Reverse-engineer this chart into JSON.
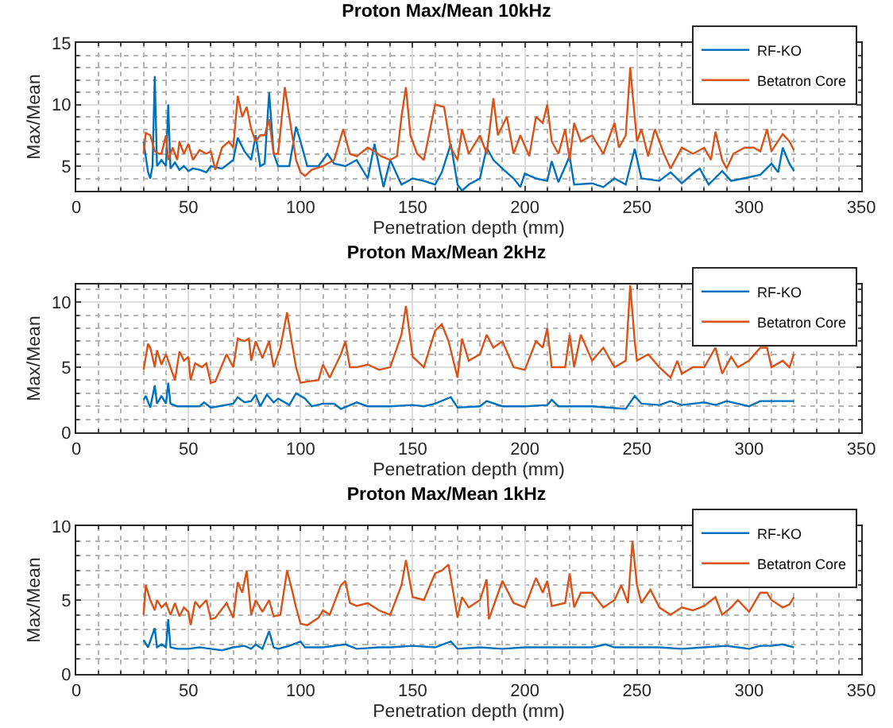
{
  "chart_data": [
    {
      "type": "line",
      "title": "Proton Max/Mean 10kHz",
      "xlabel": "Penetration depth (mm)",
      "ylabel": "Max/Mean",
      "xlim": [
        0,
        350
      ],
      "xticks": [
        0,
        50,
        100,
        150,
        200,
        250,
        300,
        350
      ],
      "ylim": [
        3,
        15
      ],
      "yticks": [
        5,
        10,
        15
      ],
      "grid": true,
      "legend": "top right",
      "marker": "none",
      "line_style": "solid",
      "series": [
        {
          "name": "RF-KO",
          "color": "#0072bd",
          "x": [
            30,
            32,
            33,
            34,
            35,
            36,
            38,
            40,
            41,
            42,
            44,
            46,
            48,
            50,
            52,
            55,
            58,
            60,
            65,
            70,
            72,
            75,
            78,
            80,
            82,
            84,
            86,
            88,
            90,
            95,
            98,
            100,
            103,
            108,
            112,
            115,
            120,
            125,
            130,
            133,
            135,
            137,
            140,
            145,
            150,
            155,
            160,
            163,
            167,
            170,
            172,
            175,
            180,
            183,
            186,
            190,
            195,
            198,
            200,
            205,
            210,
            212,
            215,
            220,
            222,
            230,
            235,
            240,
            245,
            249,
            252,
            260,
            265,
            270,
            275,
            278,
            282,
            288,
            292,
            300,
            305,
            310,
            313,
            315,
            318,
            320
          ],
          "values": [
            7,
            4.5,
            4,
            5,
            12.3,
            5,
            5.5,
            5,
            10,
            4.8,
            5.3,
            4.7,
            5,
            4.6,
            4.8,
            4.7,
            4.5,
            5,
            4.8,
            5.5,
            7.3,
            6.2,
            5.5,
            7.5,
            5,
            5.2,
            11,
            6,
            5,
            5,
            8.2,
            7,
            5,
            5,
            6,
            5.2,
            5,
            5.5,
            4,
            6.8,
            5,
            3.3,
            5.5,
            3.5,
            4,
            3.8,
            3.5,
            4.5,
            6.8,
            3.5,
            3,
            3.5,
            4,
            6.5,
            5.5,
            4.8,
            4,
            3.3,
            4.4,
            4,
            3.8,
            5.4,
            3.7,
            5.8,
            3.5,
            3.6,
            3.3,
            4,
            3.5,
            6.4,
            4,
            3.8,
            4.5,
            3.6,
            4.4,
            4.8,
            3.5,
            4.6,
            3.8,
            4.1,
            4.3,
            5.2,
            4.5,
            6.5,
            5.2,
            4.6
          ]
        },
        {
          "name": "Betatron Core",
          "color": "#d95319",
          "x": [
            30,
            31,
            33,
            35,
            37,
            38,
            40,
            41,
            43,
            45,
            46,
            48,
            50,
            52,
            55,
            58,
            60,
            62,
            65,
            68,
            70,
            72,
            74,
            76,
            78,
            80,
            82,
            84,
            86,
            88,
            90,
            93,
            95,
            98,
            100,
            102,
            105,
            110,
            115,
            119,
            122,
            125,
            130,
            133,
            136,
            140,
            143,
            145,
            147,
            149,
            152,
            155,
            160,
            164,
            167,
            170,
            172,
            175,
            180,
            183,
            186,
            188,
            192,
            195,
            198,
            202,
            205,
            208,
            210,
            212,
            215,
            218,
            220,
            222,
            225,
            230,
            235,
            240,
            242,
            245,
            247,
            249,
            250,
            252,
            255,
            258,
            262,
            265,
            270,
            275,
            280,
            283,
            285,
            288,
            290,
            293,
            298,
            302,
            305,
            308,
            310,
            315,
            318,
            320
          ],
          "values": [
            6,
            7.7,
            7.5,
            6.2,
            6,
            6,
            7.5,
            5.5,
            6.5,
            5.5,
            7,
            6,
            6.8,
            5.5,
            6.3,
            6,
            6.2,
            4.7,
            6.5,
            7,
            6.5,
            10.7,
            9,
            9.8,
            8,
            7,
            7.5,
            7.5,
            8.8,
            6,
            6,
            11.4,
            9,
            5.5,
            4.5,
            4.2,
            4.7,
            5,
            5.5,
            8,
            6,
            5.8,
            6.5,
            6.2,
            5.8,
            5.5,
            5.8,
            9,
            11.4,
            7.5,
            6,
            5.5,
            10,
            9.8,
            6.5,
            5.5,
            8,
            6,
            7.5,
            6,
            10.5,
            7.5,
            9,
            6,
            7.5,
            5.8,
            9,
            8.5,
            10,
            7,
            6,
            8,
            5.5,
            8.5,
            7,
            7.5,
            6,
            8.5,
            6.5,
            7.5,
            13,
            9,
            7,
            8,
            5.8,
            8,
            6,
            4.8,
            6.5,
            6,
            6.5,
            5.5,
            7.8,
            5.5,
            4.8,
            6,
            6.5,
            6.5,
            6.2,
            8,
            6.2,
            7.6,
            7,
            6.3
          ]
        }
      ]
    },
    {
      "type": "line",
      "title": "Proton Max/Mean 2kHz",
      "xlabel": "Penetration depth (mm)",
      "ylabel": "Max/Mean",
      "xlim": [
        0,
        350
      ],
      "xticks": [
        0,
        50,
        100,
        150,
        200,
        250,
        300,
        350
      ],
      "ylim": [
        0,
        11.35
      ],
      "yticks": [
        0,
        5,
        10
      ],
      "grid": true,
      "legend": "top right",
      "marker": "none",
      "line_style": "solid",
      "series": [
        {
          "name": "RF-KO",
          "color": "#0072bd",
          "x": [
            30,
            31,
            33,
            35,
            36,
            38,
            40,
            41,
            42,
            45,
            55,
            57,
            60,
            70,
            72,
            75,
            78,
            80,
            82,
            85,
            88,
            90,
            95,
            98,
            102,
            105,
            110,
            115,
            118,
            125,
            130,
            140,
            150,
            155,
            160,
            167,
            170,
            180,
            183,
            190,
            200,
            210,
            212,
            215,
            230,
            245,
            249,
            252,
            260,
            265,
            270,
            280,
            285,
            290,
            300,
            305,
            320
          ],
          "values": [
            2.5,
            2.8,
            1.9,
            3.6,
            2.2,
            2.8,
            2.2,
            3.8,
            2.2,
            2,
            2,
            2.3,
            1.9,
            2.2,
            2.7,
            2.3,
            2.4,
            2.9,
            2,
            2.9,
            2.3,
            2.6,
            2.1,
            3,
            2.6,
            2,
            2.2,
            2.2,
            1.8,
            2.3,
            2,
            2,
            2.1,
            2,
            2.2,
            2.7,
            1.9,
            2,
            2.4,
            2,
            2,
            2.1,
            2.5,
            2,
            2,
            1.8,
            2.8,
            2.2,
            2.1,
            2.4,
            2.1,
            2.3,
            2.1,
            2.4,
            2,
            2.4,
            2.4
          ]
        },
        {
          "name": "Betatron Core",
          "color": "#d95319",
          "x": [
            30,
            32,
            33,
            35,
            36,
            38,
            40,
            42,
            44,
            46,
            48,
            50,
            51,
            53,
            56,
            58,
            60,
            62,
            67,
            70,
            72,
            75,
            77,
            78,
            80,
            83,
            86,
            88,
            91,
            94,
            96,
            98,
            100,
            103,
            108,
            110,
            113,
            118,
            120,
            122,
            125,
            130,
            135,
            140,
            145,
            147,
            150,
            155,
            160,
            163,
            166,
            170,
            172,
            175,
            180,
            183,
            186,
            190,
            195,
            200,
            205,
            208,
            210,
            212,
            218,
            220,
            222,
            225,
            230,
            235,
            240,
            245,
            247,
            249,
            250,
            255,
            260,
            265,
            268,
            270,
            275,
            280,
            285,
            288,
            292,
            295,
            300,
            305,
            308,
            310,
            315,
            318,
            320
          ],
          "values": [
            4.8,
            6.8,
            6.5,
            5,
            6.3,
            5.2,
            6,
            5,
            4,
            6.2,
            5.5,
            5.8,
            4,
            5.3,
            5,
            5.3,
            3.8,
            3.9,
            6,
            5,
            7.2,
            7,
            7.2,
            5.5,
            7,
            5.7,
            7,
            5,
            6.5,
            9.2,
            7,
            5,
            3.8,
            3.9,
            4,
            5.2,
            4.2,
            6,
            7,
            5,
            5,
            5.2,
            4.8,
            5,
            7.5,
            9.7,
            5.8,
            5,
            7.8,
            8.3,
            7,
            4.2,
            7.2,
            5.5,
            6,
            7.5,
            6.5,
            7,
            5,
            4.8,
            7,
            6.5,
            8,
            5,
            5,
            7.5,
            5,
            7.5,
            5.5,
            6.5,
            5,
            5.5,
            11.3,
            7,
            5.5,
            6,
            5,
            4.2,
            5.5,
            4.5,
            5,
            5,
            6.5,
            4.5,
            5.8,
            5,
            5.5,
            6.5,
            6.5,
            5,
            5.5,
            5,
            6
          ]
        }
      ]
    },
    {
      "type": "line",
      "title": "Proton Max/Mean 1kHz",
      "xlabel": "Penetration depth (mm)",
      "ylabel": "Max/Mean",
      "xlim": [
        0,
        350
      ],
      "xticks": [
        0,
        50,
        100,
        150,
        200,
        250,
        300,
        350
      ],
      "ylim": [
        0,
        10
      ],
      "yticks": [
        0,
        5,
        10
      ],
      "grid": true,
      "legend": "top right",
      "marker": "none",
      "line_style": "solid",
      "series": [
        {
          "name": "RF-KO",
          "color": "#0072bd",
          "x": [
            30,
            32,
            35,
            36,
            38,
            40,
            41,
            42,
            45,
            50,
            55,
            60,
            65,
            70,
            75,
            78,
            80,
            83,
            86,
            88,
            90,
            95,
            100,
            102,
            110,
            120,
            125,
            135,
            140,
            150,
            160,
            167,
            170,
            180,
            190,
            200,
            210,
            220,
            230,
            236,
            240,
            250,
            260,
            270,
            280,
            290,
            295,
            300,
            305,
            310,
            315,
            320
          ],
          "values": [
            2.3,
            1.8,
            3.1,
            1.8,
            2,
            1.8,
            3.7,
            1.8,
            1.7,
            1.7,
            1.8,
            1.7,
            1.6,
            1.8,
            1.9,
            1.7,
            2,
            1.7,
            2.9,
            1.8,
            1.7,
            1.9,
            2.2,
            1.8,
            1.8,
            2,
            1.7,
            1.8,
            1.8,
            1.9,
            1.8,
            2.2,
            1.7,
            1.8,
            1.7,
            1.8,
            1.8,
            1.8,
            1.8,
            2,
            1.8,
            1.8,
            1.8,
            1.7,
            1.8,
            1.9,
            1.8,
            1.7,
            1.9,
            1.9,
            2,
            1.8
          ]
        },
        {
          "name": "Betatron Core",
          "color": "#d95319",
          "x": [
            30,
            31,
            33,
            35,
            36,
            38,
            40,
            42,
            44,
            46,
            48,
            50,
            51,
            53,
            55,
            58,
            60,
            62,
            67,
            70,
            72,
            74,
            76,
            78,
            80,
            83,
            86,
            88,
            91,
            94,
            96,
            98,
            100,
            103,
            108,
            110,
            113,
            118,
            120,
            122,
            125,
            130,
            135,
            140,
            145,
            147,
            150,
            155,
            160,
            163,
            166,
            170,
            172,
            175,
            180,
            183,
            184,
            187,
            190,
            195,
            200,
            205,
            208,
            210,
            212,
            218,
            220,
            222,
            225,
            230,
            235,
            240,
            243,
            246,
            248,
            250,
            252,
            256,
            260,
            265,
            270,
            275,
            280,
            285,
            288,
            292,
            295,
            300,
            305,
            308,
            310,
            315,
            318,
            320
          ],
          "values": [
            4,
            6,
            5,
            4.3,
            5,
            4.5,
            4.8,
            4,
            4.8,
            3.9,
            4.5,
            4.2,
            3.3,
            4.9,
            4.5,
            5,
            3.7,
            3.8,
            4.8,
            3.8,
            6.2,
            5.5,
            7,
            4,
            5,
            4.2,
            5,
            3.9,
            4,
            7,
            5.8,
            4.5,
            3.4,
            3.3,
            3.8,
            4.3,
            4,
            6,
            6.3,
            4.8,
            4.6,
            4.8,
            4.3,
            4,
            6,
            7.7,
            5.2,
            5,
            6.8,
            7,
            7.4,
            3.8,
            5.2,
            4.5,
            5,
            6.4,
            3.7,
            5,
            6.3,
            4.8,
            4.5,
            6.5,
            5.5,
            6.3,
            4.6,
            4.8,
            6.8,
            4.5,
            5.5,
            5.5,
            4.5,
            5,
            6,
            4.8,
            9,
            6,
            4.8,
            5.7,
            4.5,
            4,
            4.5,
            4.3,
            4.6,
            5.2,
            4,
            4.5,
            5,
            4.2,
            5.5,
            5.5,
            5,
            4.5,
            4.7,
            5.2
          ]
        }
      ]
    }
  ]
}
